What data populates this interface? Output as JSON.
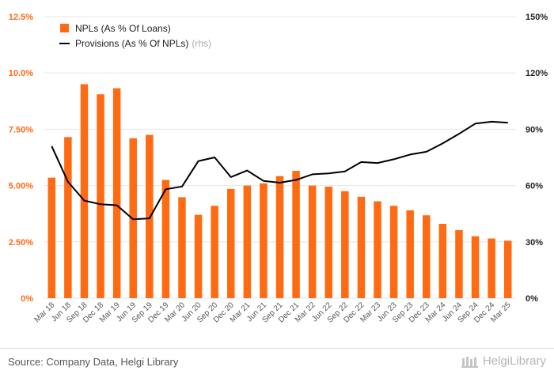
{
  "chart_data": {
    "type": "bar",
    "categories": [
      "Mar 18",
      "Jun 18",
      "Sep 18",
      "Dec 18",
      "Mar 19",
      "Jun 19",
      "Sep 19",
      "Dec 19",
      "Mar 20",
      "Jun 20",
      "Sep 20",
      "Dec 20",
      "Mar 21",
      "Jun 21",
      "Sep 21",
      "Dec 21",
      "Mar 22",
      "Jun 22",
      "Sep 22",
      "Dec 22",
      "Mar 23",
      "Jun 23",
      "Sep 23",
      "Dec 23",
      "Mar 24",
      "Jun 24",
      "Sep 24",
      "Dec 24",
      "Mar 25"
    ],
    "series": [
      {
        "name": "NPLs (As % Of Loans)",
        "type": "bar",
        "axis": "left",
        "color": "#ff6a13",
        "values": [
          5.35,
          7.15,
          9.5,
          9.05,
          9.32,
          7.1,
          7.25,
          5.25,
          4.48,
          3.7,
          4.1,
          4.85,
          5.0,
          5.1,
          5.42,
          5.65,
          5.0,
          4.95,
          4.75,
          4.5,
          4.3,
          4.1,
          3.9,
          3.68,
          3.3,
          3.02,
          2.75,
          2.65,
          2.55
        ]
      },
      {
        "name": "Provisions (As % Of NPLs)",
        "type": "line",
        "axis": "right",
        "color": "#000000",
        "values": [
          81,
          62,
          52,
          50,
          49.5,
          42,
          42.5,
          58,
          59.5,
          73,
          75,
          64.5,
          68,
          62.5,
          61.5,
          63,
          66,
          66.5,
          67.5,
          72.5,
          72,
          74,
          76.5,
          78,
          82.5,
          87.5,
          93,
          94,
          93.5
        ]
      }
    ],
    "title": "",
    "xlabel": "",
    "ylabel": "",
    "ylim": [
      0,
      12.5
    ],
    "y2lim": [
      0,
      150
    ],
    "grid": true,
    "legend_placement": "top-left"
  },
  "axes": {
    "left_ticks": [
      "0%",
      "2.50%",
      "5.00%",
      "7.50%",
      "10.0%",
      "12.5%"
    ],
    "right_ticks": [
      "0%",
      "30%",
      "60%",
      "90%",
      "120%",
      "150%"
    ]
  },
  "legend": {
    "items": [
      {
        "label": "NPLs (As % Of Loans)",
        "note": ""
      },
      {
        "label": "Provisions (As % Of NPLs)",
        "note": "(rhs)"
      }
    ]
  },
  "footer": {
    "source": "Source: Company Data, Helgi Library",
    "brand": "HelgiLibrary"
  },
  "colors": {
    "bar": "#ff6a13",
    "line": "#000000",
    "left_axis": "#ff6a13",
    "right_axis": "#222222"
  }
}
